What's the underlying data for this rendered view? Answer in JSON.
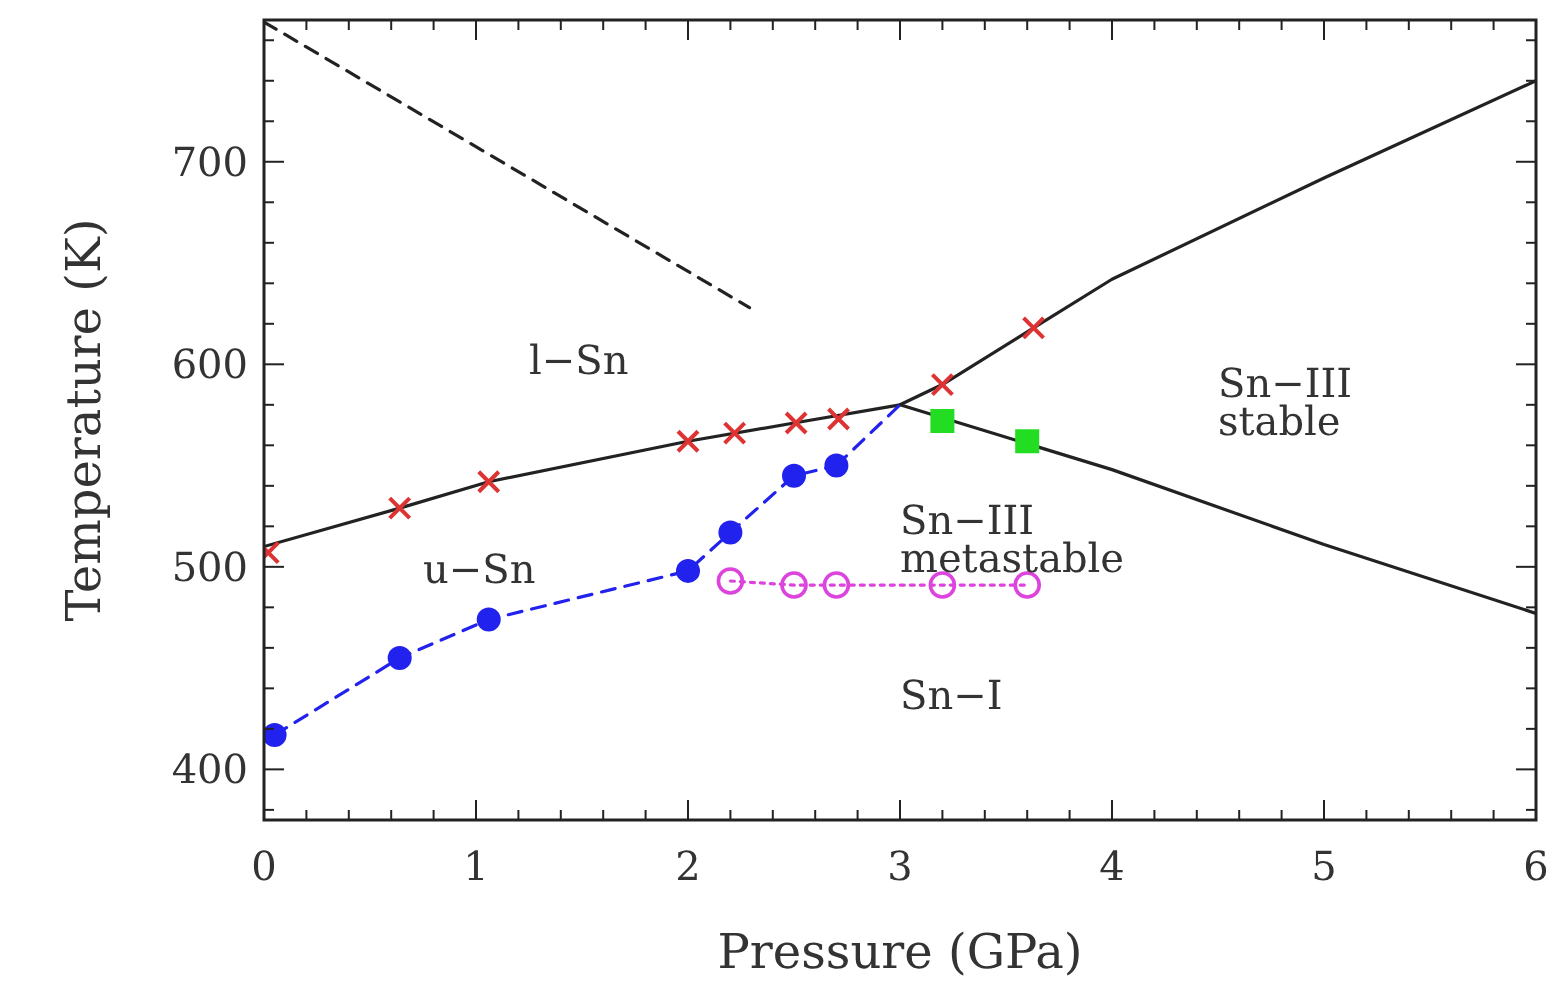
{
  "chart_data": {
    "type": "line",
    "xlabel": "Pressure (GPa)",
    "ylabel": "Temperature (K)",
    "xlim": [
      0,
      6
    ],
    "ylim": [
      375,
      770
    ],
    "xticks": [
      0,
      {
        "value": 0.2,
        "label": null
      },
      {
        "value": 0.4,
        "label": null
      },
      {
        "value": 0.6,
        "label": null
      },
      {
        "value": 0.8,
        "label": null
      },
      1,
      {
        "value": 1.2,
        "label": null
      },
      {
        "value": 1.4,
        "label": null
      },
      {
        "value": 1.6,
        "label": null
      },
      {
        "value": 1.8,
        "label": null
      },
      2,
      {
        "value": 2.2,
        "label": null
      },
      {
        "value": 2.4,
        "label": null
      },
      {
        "value": 2.6,
        "label": null
      },
      {
        "value": 2.8,
        "label": null
      },
      3,
      {
        "value": 3.2,
        "label": null
      },
      {
        "value": 3.4,
        "label": null
      },
      {
        "value": 3.6,
        "label": null
      },
      {
        "value": 3.8,
        "label": null
      },
      4,
      {
        "value": 4.2,
        "label": null
      },
      {
        "value": 4.4,
        "label": null
      },
      {
        "value": 4.6,
        "label": null
      },
      {
        "value": 4.8,
        "label": null
      },
      5,
      {
        "value": 5.2,
        "label": null
      },
      {
        "value": 5.4,
        "label": null
      },
      {
        "value": 5.6,
        "label": null
      },
      {
        "value": 5.8,
        "label": null
      },
      6
    ],
    "yticks": [
      {
        "value": 380,
        "label": null
      },
      400,
      {
        "value": 420,
        "label": null
      },
      {
        "value": 440,
        "label": null
      },
      {
        "value": 460,
        "label": null
      },
      {
        "value": 480,
        "label": null
      },
      500,
      {
        "value": 520,
        "label": null
      },
      {
        "value": 540,
        "label": null
      },
      {
        "value": 560,
        "label": null
      },
      {
        "value": 580,
        "label": null
      },
      600,
      {
        "value": 620,
        "label": null
      },
      {
        "value": 640,
        "label": null
      },
      {
        "value": 660,
        "label": null
      },
      {
        "value": 680,
        "label": null
      },
      700,
      {
        "value": 720,
        "label": null
      },
      {
        "value": 740,
        "label": null
      },
      {
        "value": 760,
        "label": null
      }
    ],
    "grid": false,
    "annotations": [
      "l−Sn",
      "u−Sn",
      "Sn−III\nmetastable",
      "Sn−III\nstable",
      "Sn−I"
    ],
    "series": [
      {
        "color": "#222222",
        "marker": "none",
        "line_style": "solid",
        "x": [
          0,
          0.64,
          1.06,
          2,
          2.5,
          3.0,
          3.2,
          3.63,
          4,
          5,
          6
        ],
        "values": [
          510,
          529,
          542,
          562,
          571,
          580,
          590,
          618,
          642,
          692,
          740
        ]
      },
      {
        "color": "#222222",
        "marker": "none",
        "line_style": "solid",
        "x": [
          3.0,
          4,
          5,
          6
        ],
        "values": [
          580,
          548,
          511,
          477
        ]
      },
      {
        "color": "#222222",
        "marker": "none",
        "line_style": "dashed",
        "x": [
          0,
          2.29
        ],
        "values": [
          769,
          628
        ]
      },
      {
        "color": "#2222ee",
        "marker": "circle",
        "line_style": "dashed",
        "x": [
          0.05,
          0.64,
          1.06,
          2.0,
          2.2,
          2.5,
          2.7
        ],
        "values": [
          417,
          455,
          474,
          498,
          517,
          545,
          550
        ]
      },
      {
        "color": "#2222ee",
        "marker": "none",
        "line_style": "dashed",
        "x": [
          2.7,
          3.0
        ],
        "values": [
          550,
          580
        ]
      },
      {
        "color": "#dd44dd",
        "marker": "circle",
        "line_style": "dotted",
        "x": [
          2.2,
          2.5,
          2.7,
          3.2,
          3.6
        ],
        "values": [
          493,
          491,
          491,
          491,
          491
        ]
      },
      {
        "type": "scatter",
        "color": "#dd3333",
        "marker": "cross",
        "x": [
          0.02,
          0.64,
          1.06,
          2.0,
          2.22,
          2.51,
          2.71,
          3.2,
          3.63
        ],
        "values": [
          507,
          529,
          542,
          562,
          566,
          571,
          573,
          590,
          618
        ]
      },
      {
        "type": "scatter",
        "color": "#22dd22",
        "marker": "square",
        "x": [
          3.2,
          3.6
        ],
        "values": [
          572,
          562
        ]
      }
    ]
  }
}
